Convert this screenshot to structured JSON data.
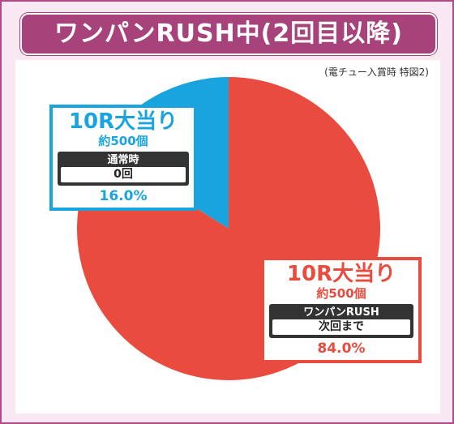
{
  "title": "ワンパンRUSH中(2回目以降)",
  "note": "(電チュー入賞時 特図2)",
  "colors": {
    "frame": "#b04a86",
    "title_bg": "#a7427b",
    "background": "#f9e8f1",
    "slice_blue": "#1aa4df",
    "slice_red": "#e94b3f"
  },
  "chart_data": {
    "type": "pie",
    "title": "ワンパンRUSH中(2回目以降)",
    "slices": [
      {
        "label": "10R大当り",
        "sub": "約500個",
        "detail_label": "通常時",
        "detail_value": "0回",
        "value": 16.0,
        "display": "16.0%",
        "color": "#1aa4df"
      },
      {
        "label": "10R大当り",
        "sub": "約500個",
        "detail_label": "ワンパンRUSH",
        "detail_value": "次回まで",
        "value": 84.0,
        "display": "84.0%",
        "color": "#e94b3f"
      }
    ]
  }
}
